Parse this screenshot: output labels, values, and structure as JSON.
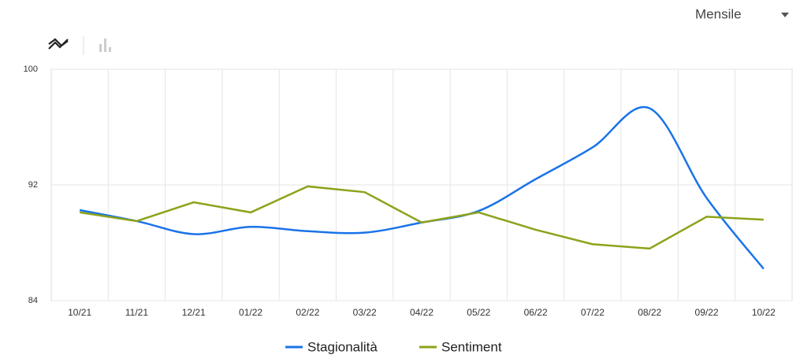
{
  "chart_data": {
    "type": "line",
    "period": "Mensile",
    "categories": [
      "10/21",
      "11/21",
      "12/21",
      "01/22",
      "02/22",
      "03/22",
      "04/22",
      "05/22",
      "06/22",
      "07/22",
      "08/22",
      "09/22",
      "10/22"
    ],
    "series": [
      {
        "name": "Stagionalità",
        "color": "#1a73e8",
        "smooth": true,
        "values": [
          90.26,
          89.5,
          88.6,
          89.1,
          88.8,
          88.7,
          89.4,
          90.2,
          92.4,
          94.6,
          97.3,
          91.1,
          86.2
        ]
      },
      {
        "name": "Sentiment",
        "color": "#8ca31a",
        "smooth": false,
        "values": [
          90.1,
          89.5,
          90.8,
          90.1,
          91.9,
          91.5,
          89.4,
          90.1,
          88.9,
          87.9,
          87.6,
          89.8,
          89.6
        ]
      }
    ],
    "ylim": [
      84,
      100
    ],
    "yticks": [
      84,
      92,
      100
    ],
    "grid": true
  }
}
